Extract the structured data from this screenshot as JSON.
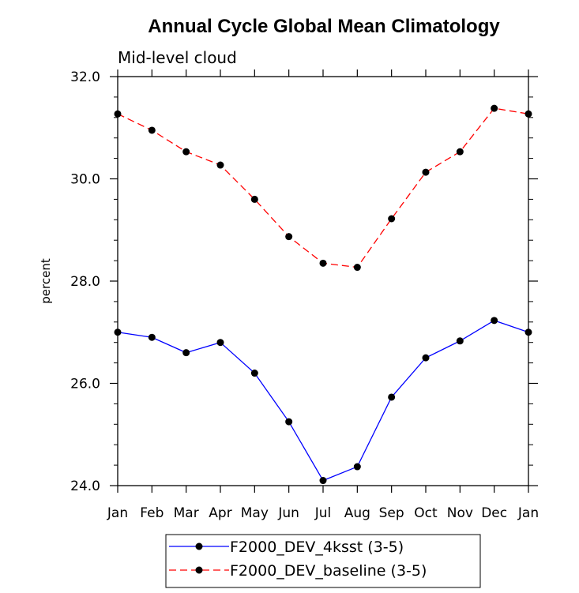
{
  "chart_data": {
    "type": "line",
    "title": "Annual Cycle Global Mean Climatology",
    "subtitle": "Mid-level cloud",
    "ylabel": "percent",
    "xlabel": "",
    "categories": [
      "Jan",
      "Feb",
      "Mar",
      "Apr",
      "May",
      "Jun",
      "Jul",
      "Aug",
      "Sep",
      "Oct",
      "Nov",
      "Dec",
      "Jan"
    ],
    "ylim": [
      24.0,
      32.0
    ],
    "yticks": [
      "24.0",
      "26.0",
      "28.0",
      "30.0",
      "32.0"
    ],
    "legend_position": "bottom-center",
    "series": [
      {
        "name": "F2000_DEV_4ksst (3-5)",
        "color": "#0000ff",
        "dash": "solid",
        "values": [
          27.0,
          26.9,
          26.6,
          26.8,
          26.2,
          25.25,
          24.1,
          24.37,
          25.73,
          26.5,
          26.83,
          27.23,
          27.0
        ]
      },
      {
        "name": "F2000_DEV_baseline (3-5)",
        "color": "#ff0000",
        "dash": "dashed",
        "values": [
          31.27,
          30.95,
          30.53,
          30.27,
          29.6,
          28.87,
          28.35,
          28.27,
          29.22,
          30.13,
          30.53,
          31.38,
          31.27
        ]
      }
    ]
  }
}
